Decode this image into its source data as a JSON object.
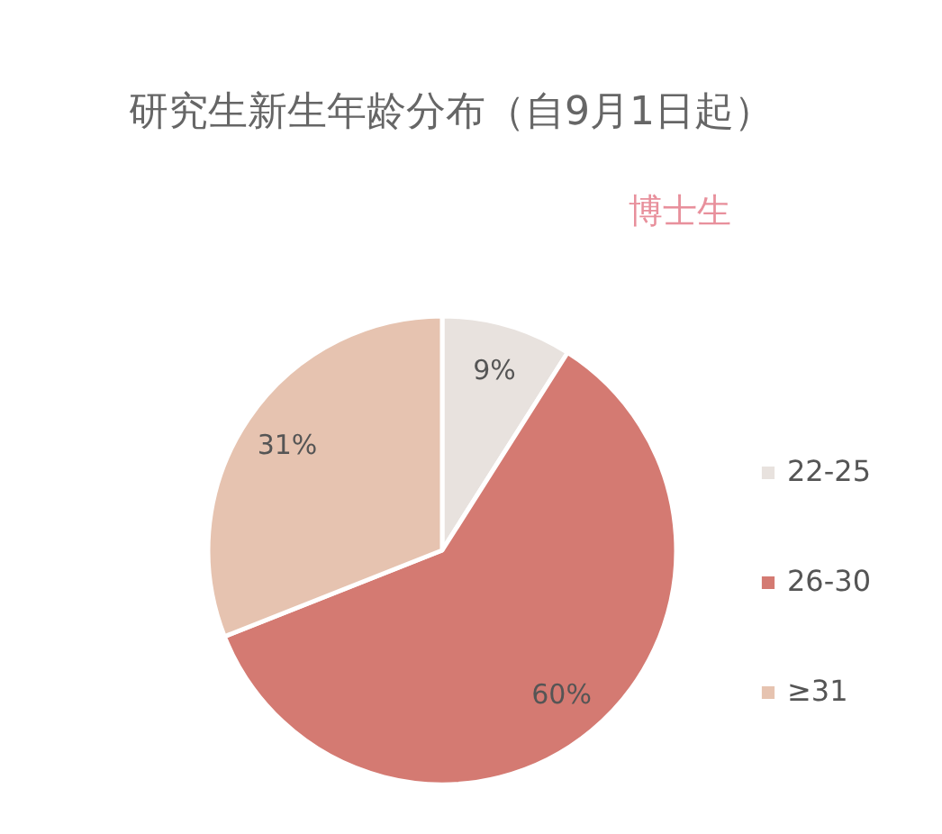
{
  "chart_data": {
    "type": "pie",
    "title": "研究生新生年龄分布（自9月1日起）",
    "subtitle": "博士生",
    "categories": [
      "22-25",
      "26-30",
      "≥31"
    ],
    "values": [
      9,
      60,
      31
    ],
    "colors": [
      "#e8e2de",
      "#d47a72",
      "#e6c3b0"
    ],
    "value_labels": [
      "9%",
      "60%",
      "31%"
    ],
    "legend": "right"
  }
}
